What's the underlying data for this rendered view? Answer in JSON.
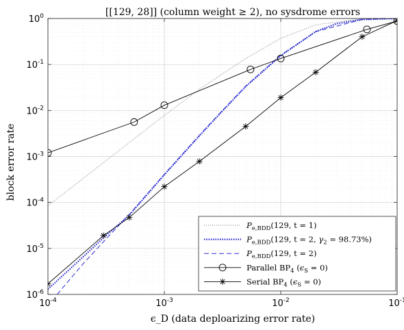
{
  "chart_data": {
    "type": "line",
    "title": "[[129, 28]] (column weight ≥ 2), no sysdrome errors",
    "xlabel": "ϵ_D (data deploarizing error rate)",
    "ylabel": "block error rate",
    "xscale": "log",
    "yscale": "log",
    "xlim": [
      0.0001,
      0.1
    ],
    "ylim": [
      1e-06,
      1
    ],
    "grid": true,
    "legend_position": "bottom-right",
    "x_ticks": [
      {
        "value": 0.0001,
        "base": "10",
        "exp": "-4"
      },
      {
        "value": 0.001,
        "base": "10",
        "exp": "-3"
      },
      {
        "value": 0.01,
        "base": "10",
        "exp": "-2"
      },
      {
        "value": 0.1,
        "base": "10",
        "exp": "-1"
      }
    ],
    "y_ticks": [
      {
        "value": 1e-06,
        "base": "10",
        "exp": "-6"
      },
      {
        "value": 1e-05,
        "base": "10",
        "exp": "-5"
      },
      {
        "value": 0.0001,
        "base": "10",
        "exp": "-4"
      },
      {
        "value": 0.001,
        "base": "10",
        "exp": "-3"
      },
      {
        "value": 0.01,
        "base": "10",
        "exp": "-2"
      },
      {
        "value": 0.1,
        "base": "10",
        "exp": "-1"
      },
      {
        "value": 1,
        "base": "10",
        "exp": "0"
      }
    ],
    "series": [
      {
        "name": "P_e,BDD(129, t = 1)",
        "color": "#777777",
        "style": "dotted",
        "marker": "none",
        "x": [
          0.0001,
          0.0002,
          0.0005,
          0.001,
          0.002,
          0.005,
          0.01,
          0.02,
          0.05,
          0.1
        ],
        "y": [
          8.5e-05,
          0.00033,
          0.002,
          0.0078,
          0.029,
          0.135,
          0.37,
          0.73,
          0.98,
          1.0
        ]
      },
      {
        "name": "P_e,BDD(129, t = 2, γ_2 = 98.73%)",
        "color": "#1f1fcc",
        "style": "dotted-bold",
        "marker": "none",
        "x": [
          0.0001,
          0.0002,
          0.0003,
          0.0005,
          0.001,
          0.002,
          0.003,
          0.005,
          0.01,
          0.02,
          0.03,
          0.05,
          0.1
        ],
        "y": [
          1.3e-06,
          6.5e-06,
          1.7e-05,
          5.3e-05,
          0.0004,
          0.0028,
          0.0085,
          0.033,
          0.155,
          0.52,
          0.77,
          0.95,
          1.0
        ]
      },
      {
        "name": "P_e,BDD(129, t = 2)",
        "color": "#2a2ad4",
        "style": "dashed",
        "marker": "none",
        "x": [
          0.00012,
          0.0002,
          0.0003,
          0.0005,
          0.001,
          0.002,
          0.003,
          0.005,
          0.01,
          0.02,
          0.05,
          0.1
        ],
        "y": [
          1e-06,
          4.6e-06,
          1.4e-05,
          5.5e-05,
          0.00041,
          0.0029,
          0.0087,
          0.034,
          0.16,
          0.52,
          0.95,
          1.0
        ]
      },
      {
        "name": "Parallel BP_4 (ϵ_S = 0)",
        "color": "#000000",
        "style": "solid",
        "marker": "circle",
        "x": [
          0.0001,
          0.00055,
          0.001,
          0.0055,
          0.01,
          0.055,
          0.1
        ],
        "y": [
          0.0012,
          0.0056,
          0.013,
          0.078,
          0.135,
          0.58,
          0.88
        ]
      },
      {
        "name": "Serial BP_4 (ϵ_S = 0)",
        "color": "#000000",
        "style": "solid",
        "marker": "asterisk",
        "x": [
          0.0001,
          0.0003,
          0.0005,
          0.001,
          0.002,
          0.005,
          0.01,
          0.02,
          0.05,
          0.1
        ],
        "y": [
          1.7e-06,
          1.9e-05,
          4.7e-05,
          0.00022,
          0.00078,
          0.0045,
          0.019,
          0.068,
          0.4,
          0.9
        ]
      }
    ]
  }
}
